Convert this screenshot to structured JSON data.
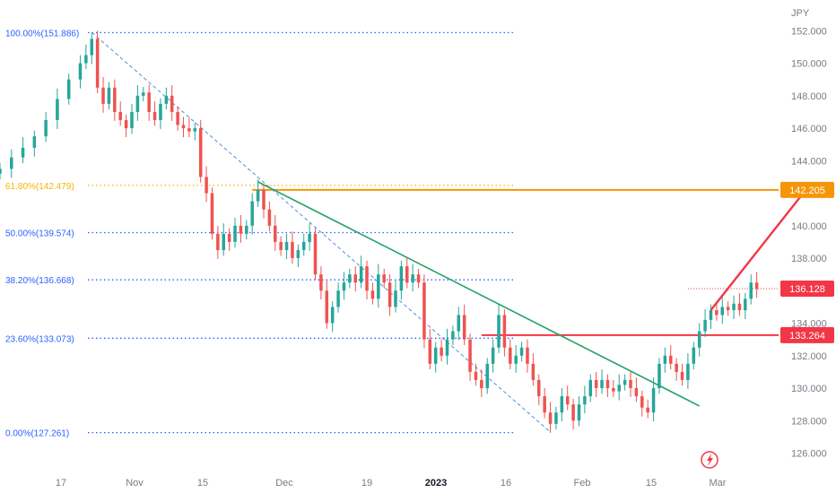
{
  "chart_data": {
    "type": "candlestick",
    "currency_label": "JPY",
    "y_axis": {
      "range": [
        125.2,
        152.9
      ],
      "ticks": [
        "152.000",
        "150.000",
        "148.000",
        "146.000",
        "144.000",
        "142.000",
        "140.000",
        "138.000",
        "136.000",
        "134.000",
        "132.000",
        "130.000",
        "128.000",
        "126.000"
      ]
    },
    "x_axis": {
      "ticks": [
        "17",
        "Nov",
        "15",
        "Dec",
        "19",
        "2023",
        "16",
        "Feb",
        "15",
        "Mar"
      ],
      "year_tick": "2023",
      "range_days": [
        0,
        133
      ]
    },
    "fibonacci_levels": [
      {
        "label": "100.00%(151.886)",
        "value": 151.886,
        "color": "#2962ff"
      },
      {
        "label": "61.80%(142.479)",
        "value": 142.479,
        "color": "#f5b400"
      },
      {
        "label": "50.00%(139.574)",
        "value": 139.574,
        "color": "#2962ff"
      },
      {
        "label": "38.20%(136.668)",
        "value": 136.668,
        "color": "#2962ff"
      },
      {
        "label": "23.60%(133.073)",
        "value": 133.073,
        "color": "#2962ff"
      },
      {
        "label": "0.00%(127.261)",
        "value": 127.261,
        "color": "#2962ff"
      }
    ],
    "price_badges": [
      {
        "label": "142.205",
        "value": 142.205,
        "color": "#f5960a"
      },
      {
        "label": "136.128",
        "value": 136.128,
        "color": "#f23645"
      },
      {
        "label": "133.264",
        "value": 133.264,
        "color": "#f23645"
      }
    ],
    "horizontal_lines": [
      {
        "value": 142.205,
        "from_day": 44,
        "color": "#f5960a"
      },
      {
        "value": 133.264,
        "from_day": 84,
        "color": "#f23645"
      },
      {
        "value": 136.128,
        "from_day": 120,
        "color": "#f23645",
        "dotted": true
      }
    ],
    "trend_lines": [
      {
        "name": "descending-resistance",
        "from": [
          45,
          142.7
        ],
        "to": [
          122,
          128.9
        ],
        "color": "#26a269"
      },
      {
        "name": "fib-anchor",
        "from": [
          16,
          151.9
        ],
        "to": [
          96,
          127.3
        ],
        "color": "#4a90e2",
        "dashed": true
      }
    ],
    "projection_arrow": {
      "from": [
        124,
        134.8
      ],
      "to": [
        141,
        142.4
      ],
      "color": "#f23645"
    },
    "close_series": [
      {
        "d": 0,
        "c": 143.5
      },
      {
        "d": 2,
        "c": 144.2
      },
      {
        "d": 4,
        "c": 144.8
      },
      {
        "d": 6,
        "c": 145.5
      },
      {
        "d": 8,
        "c": 146.5
      },
      {
        "d": 10,
        "c": 147.8
      },
      {
        "d": 12,
        "c": 149.0
      },
      {
        "d": 14,
        "c": 150.0
      },
      {
        "d": 15,
        "c": 150.5
      },
      {
        "d": 16,
        "c": 151.5
      },
      {
        "d": 17,
        "c": 148.5
      },
      {
        "d": 18,
        "c": 147.5
      },
      {
        "d": 19,
        "c": 148.5
      },
      {
        "d": 20,
        "c": 147.0
      },
      {
        "d": 21,
        "c": 146.5
      },
      {
        "d": 22,
        "c": 146.0
      },
      {
        "d": 23,
        "c": 147.0
      },
      {
        "d": 24,
        "c": 148.0
      },
      {
        "d": 25,
        "c": 148.2
      },
      {
        "d": 26,
        "c": 147.0
      },
      {
        "d": 27,
        "c": 146.5
      },
      {
        "d": 28,
        "c": 147.5
      },
      {
        "d": 29,
        "c": 148.0
      },
      {
        "d": 30,
        "c": 147.0
      },
      {
        "d": 31,
        "c": 146.2
      },
      {
        "d": 32,
        "c": 146.0
      },
      {
        "d": 33,
        "c": 145.8
      },
      {
        "d": 34,
        "c": 146.0
      },
      {
        "d": 35,
        "c": 143.0
      },
      {
        "d": 36,
        "c": 142.0
      },
      {
        "d": 37,
        "c": 139.5
      },
      {
        "d": 38,
        "c": 138.5
      },
      {
        "d": 39,
        "c": 139.5
      },
      {
        "d": 40,
        "c": 139.0
      },
      {
        "d": 41,
        "c": 140.0
      },
      {
        "d": 42,
        "c": 139.5
      },
      {
        "d": 43,
        "c": 140.0
      },
      {
        "d": 44,
        "c": 141.5
      },
      {
        "d": 45,
        "c": 142.2
      },
      {
        "d": 46,
        "c": 141.0
      },
      {
        "d": 47,
        "c": 140.0
      },
      {
        "d": 48,
        "c": 139.0
      },
      {
        "d": 49,
        "c": 138.5
      },
      {
        "d": 50,
        "c": 139.0
      },
      {
        "d": 51,
        "c": 138.0
      },
      {
        "d": 52,
        "c": 138.5
      },
      {
        "d": 53,
        "c": 139.0
      },
      {
        "d": 54,
        "c": 139.5
      },
      {
        "d": 55,
        "c": 137.0
      },
      {
        "d": 56,
        "c": 136.0
      },
      {
        "d": 57,
        "c": 134.0
      },
      {
        "d": 58,
        "c": 135.0
      },
      {
        "d": 59,
        "c": 136.0
      },
      {
        "d": 60,
        "c": 136.5
      },
      {
        "d": 61,
        "c": 137.0
      },
      {
        "d": 62,
        "c": 136.5
      },
      {
        "d": 63,
        "c": 137.5
      },
      {
        "d": 64,
        "c": 136.0
      },
      {
        "d": 65,
        "c": 135.5
      },
      {
        "d": 66,
        "c": 137.0
      },
      {
        "d": 67,
        "c": 136.5
      },
      {
        "d": 68,
        "c": 135.0
      },
      {
        "d": 69,
        "c": 136.0
      },
      {
        "d": 70,
        "c": 137.5
      },
      {
        "d": 71,
        "c": 136.5
      },
      {
        "d": 72,
        "c": 137.0
      },
      {
        "d": 73,
        "c": 136.5
      },
      {
        "d": 74,
        "c": 133.0
      },
      {
        "d": 75,
        "c": 131.5
      },
      {
        "d": 76,
        "c": 132.5
      },
      {
        "d": 77,
        "c": 132.0
      },
      {
        "d": 78,
        "c": 133.0
      },
      {
        "d": 79,
        "c": 133.5
      },
      {
        "d": 80,
        "c": 134.5
      },
      {
        "d": 81,
        "c": 133.0
      },
      {
        "d": 82,
        "c": 131.0
      },
      {
        "d": 83,
        "c": 130.5
      },
      {
        "d": 84,
        "c": 130.0
      },
      {
        "d": 85,
        "c": 131.5
      },
      {
        "d": 86,
        "c": 132.5
      },
      {
        "d": 87,
        "c": 134.5
      },
      {
        "d": 88,
        "c": 132.5
      },
      {
        "d": 89,
        "c": 131.5
      },
      {
        "d": 90,
        "c": 132.0
      },
      {
        "d": 91,
        "c": 132.5
      },
      {
        "d": 92,
        "c": 131.5
      },
      {
        "d": 93,
        "c": 130.5
      },
      {
        "d": 94,
        "c": 129.5
      },
      {
        "d": 95,
        "c": 128.5
      },
      {
        "d": 96,
        "c": 127.8
      },
      {
        "d": 97,
        "c": 128.5
      },
      {
        "d": 98,
        "c": 129.5
      },
      {
        "d": 99,
        "c": 129.0
      },
      {
        "d": 100,
        "c": 128.0
      },
      {
        "d": 101,
        "c": 129.0
      },
      {
        "d": 102,
        "c": 129.5
      },
      {
        "d": 103,
        "c": 130.5
      },
      {
        "d": 104,
        "c": 130.0
      },
      {
        "d": 105,
        "c": 130.5
      },
      {
        "d": 106,
        "c": 130.0
      },
      {
        "d": 107,
        "c": 129.8
      },
      {
        "d": 108,
        "c": 130.2
      },
      {
        "d": 109,
        "c": 130.5
      },
      {
        "d": 110,
        "c": 130.0
      },
      {
        "d": 111,
        "c": 129.5
      },
      {
        "d": 112,
        "c": 128.8
      },
      {
        "d": 113,
        "c": 128.5
      },
      {
        "d": 114,
        "c": 130.0
      },
      {
        "d": 115,
        "c": 131.5
      },
      {
        "d": 116,
        "c": 132.0
      },
      {
        "d": 117,
        "c": 131.5
      },
      {
        "d": 118,
        "c": 131.0
      },
      {
        "d": 119,
        "c": 130.5
      },
      {
        "d": 120,
        "c": 131.5
      },
      {
        "d": 121,
        "c": 132.5
      },
      {
        "d": 122,
        "c": 133.5
      },
      {
        "d": 123,
        "c": 134.2
      },
      {
        "d": 124,
        "c": 134.8
      },
      {
        "d": 125,
        "c": 134.5
      },
      {
        "d": 126,
        "c": 135.0
      },
      {
        "d": 127,
        "c": 134.8
      },
      {
        "d": 128,
        "c": 135.2
      },
      {
        "d": 129,
        "c": 134.8
      },
      {
        "d": 130,
        "c": 135.5
      },
      {
        "d": 131,
        "c": 136.5
      },
      {
        "d": 132,
        "c": 136.1
      }
    ]
  }
}
